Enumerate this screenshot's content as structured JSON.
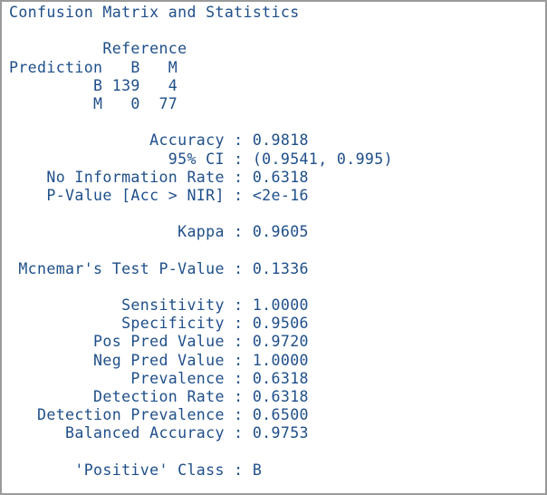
{
  "console": {
    "lines": [
      "Confusion Matrix and Statistics",
      "",
      "          Reference",
      "Prediction   B   M",
      "         B 139   4",
      "         M   0  77",
      "",
      "               Accuracy : 0.9818",
      "                 95% CI : (0.9541, 0.995)",
      "    No Information Rate : 0.6318",
      "    P-Value [Acc > NIR] : <2e-16",
      "",
      "                  Kappa : 0.9605",
      "",
      " Mcnemar's Test P-Value : 0.1336",
      "",
      "            Sensitivity : 1.0000",
      "            Specificity : 0.9506",
      "         Pos Pred Value : 0.9720",
      "         Neg Pred Value : 1.0000",
      "             Prevalence : 0.6318",
      "         Detection Rate : 0.6318",
      "   Detection Prevalence : 0.6500",
      "      Balanced Accuracy : 0.9753",
      "",
      "       'Positive' Class : B"
    ]
  }
}
